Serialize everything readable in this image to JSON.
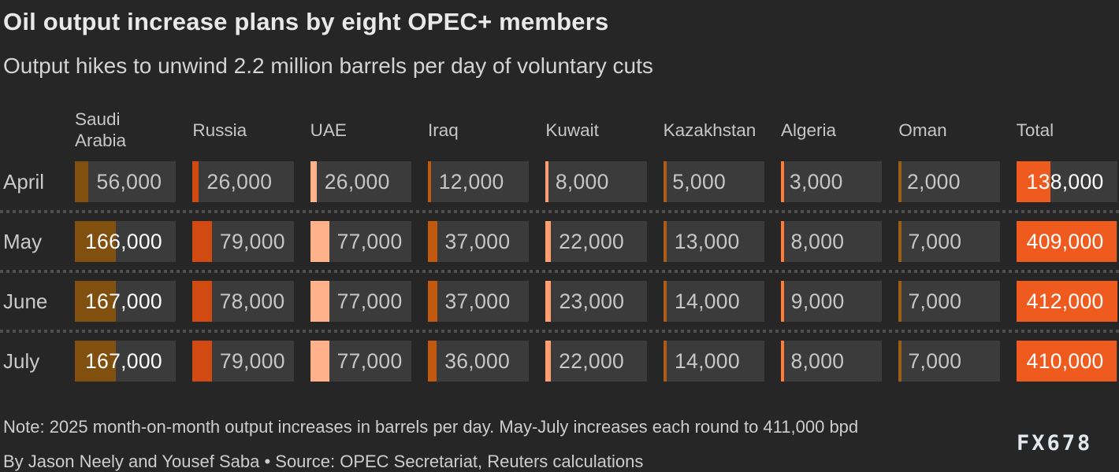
{
  "header": {
    "title": "Oil output increase plans by eight OPEC+ members",
    "subtitle": "Output hikes to unwind 2.2 million barrels per day of voluntary cuts"
  },
  "chart_data": {
    "type": "table",
    "title": "Oil output increase plans by eight OPEC+ members",
    "subtitle": "Output hikes to unwind 2.2 million barrels per day of voluntary cuts",
    "unit": "barrels per day",
    "scale_max": 412000,
    "cell_bg": "#3b3b3b",
    "columns": [
      {
        "label": "Saudi\nArabia",
        "color": "#82500e"
      },
      {
        "label": "Russia",
        "color": "#d04a12"
      },
      {
        "label": "UAE",
        "color": "#ffb289"
      },
      {
        "label": "Iraq",
        "color": "#c2590f"
      },
      {
        "label": "Kuwait",
        "color": "#ff9d6e"
      },
      {
        "label": "Kazakhstan",
        "color": "#ae5c15"
      },
      {
        "label": "Algeria",
        "color": "#ff7b33"
      },
      {
        "label": "Oman",
        "color": "#9a5e14"
      },
      {
        "label": "Total",
        "color": "#ef5a1e"
      }
    ],
    "rows": [
      {
        "label": "April",
        "values": [
          56000,
          26000,
          26000,
          12000,
          8000,
          5000,
          3000,
          2000,
          138000
        ]
      },
      {
        "label": "May",
        "values": [
          166000,
          79000,
          77000,
          37000,
          22000,
          13000,
          8000,
          7000,
          409000
        ]
      },
      {
        "label": "June",
        "values": [
          167000,
          78000,
          77000,
          37000,
          23000,
          14000,
          9000,
          7000,
          412000
        ]
      },
      {
        "label": "July",
        "values": [
          167000,
          79000,
          77000,
          36000,
          22000,
          14000,
          8000,
          7000,
          410000
        ]
      }
    ]
  },
  "footer": {
    "note": "Note: 2025 month-on-month output increases in barrels per day. May-July increases each round to 411,000 bpd",
    "byline": "By Jason Neely and Yousef Saba • Source: OPEC Secretariat, Reuters calculations",
    "brand": "FX678"
  }
}
